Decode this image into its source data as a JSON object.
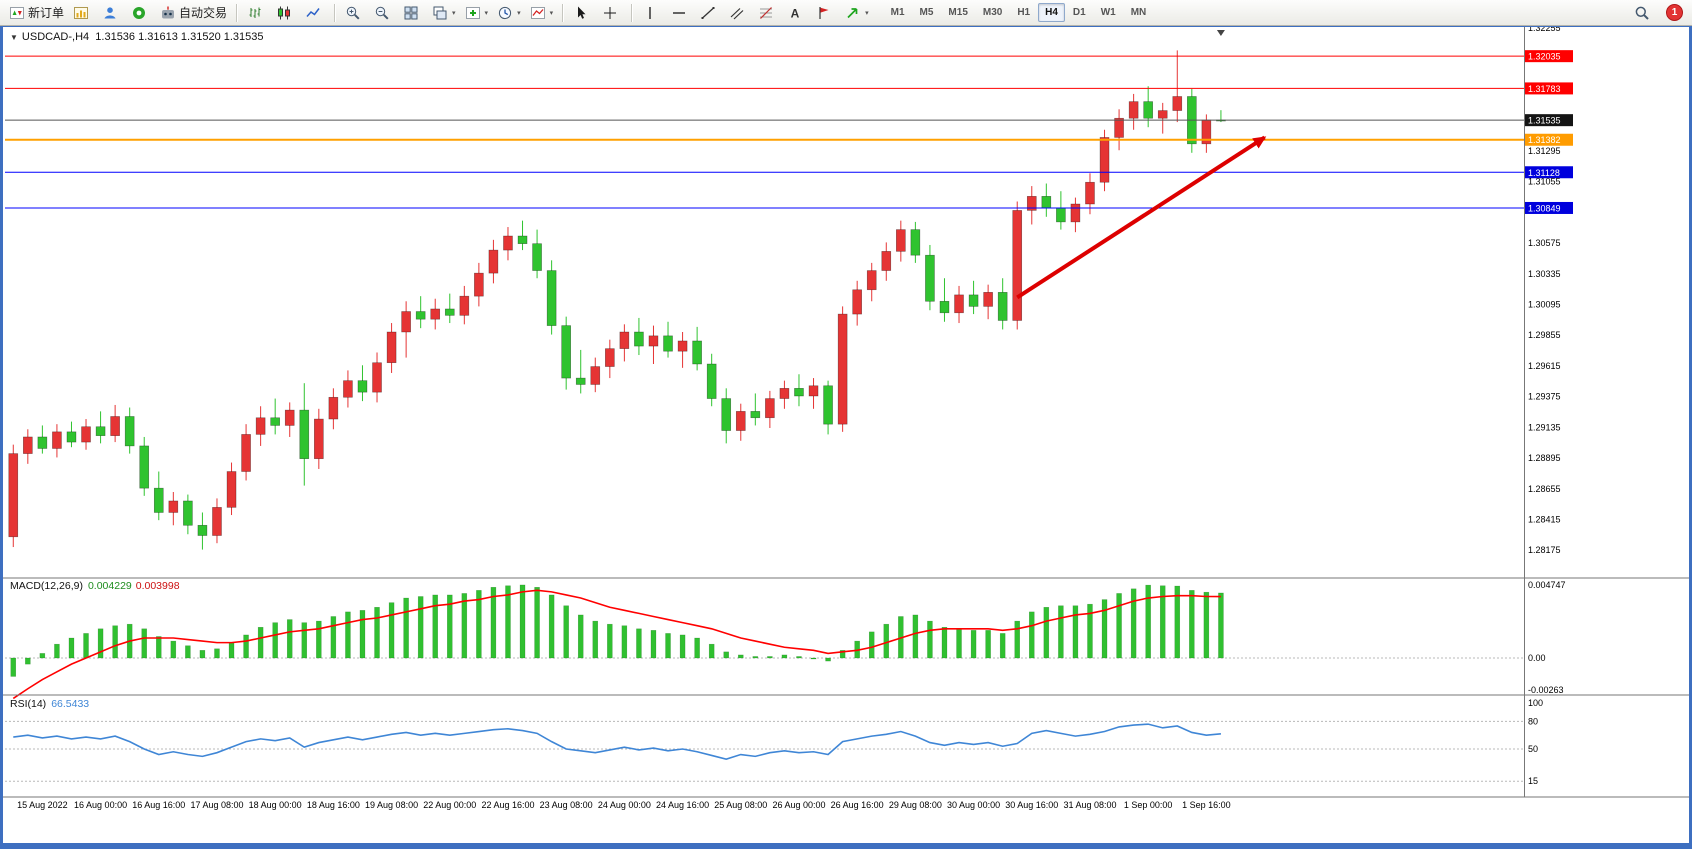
{
  "window": {
    "notification_count": "1"
  },
  "toolbar": {
    "new_order_label": "新订单",
    "auto_trading_label": "自动交易",
    "timeframes": [
      "M1",
      "M5",
      "M15",
      "M30",
      "H1",
      "H4",
      "D1",
      "W1",
      "MN"
    ],
    "active_timeframe": "H4"
  },
  "chart": {
    "collapse_arrow": "▼",
    "title_symbol": "USDCAD-,H4",
    "title_ohlc": "1.31536 1.31613 1.31520 1.31535"
  },
  "chart_data": {
    "type": "candlestick",
    "symbol": "USDCAD",
    "period": "H4",
    "current_candle": {
      "open": 1.31536,
      "high": 1.31613,
      "low": 1.3152,
      "close": 1.31535
    },
    "colors": {
      "up": "#e53434",
      "down": "#2fc32f",
      "background": "#ffffff",
      "axis_text": "#000000"
    },
    "price_axis": {
      "max": 1.32255,
      "min": 1.28175,
      "step": 0.0024,
      "labels": [
        "1.32255",
        "1.31295",
        "1.31055",
        "1.30575",
        "1.30335",
        "1.30095",
        "1.29855",
        "1.29615",
        "1.29375",
        "1.29135",
        "1.28895",
        "1.28655",
        "1.28415",
        "1.28175"
      ]
    },
    "horizontal_lines": [
      {
        "price": 1.32035,
        "label": "1.32035",
        "color": "#ff0000",
        "badge_bg": "#ff0000",
        "width": 1
      },
      {
        "price": 1.31783,
        "label": "1.31783",
        "color": "#ff0000",
        "badge_bg": "#ff0000",
        "width": 1
      },
      {
        "price": 1.31535,
        "label": "1.31535",
        "color": "#555555",
        "badge_bg": "#141414",
        "width": 1
      },
      {
        "price": 1.31382,
        "label": "1.31382",
        "color": "#ffa000",
        "badge_bg": "#ff9c00",
        "width": 2
      },
      {
        "price": 1.31128,
        "label": "1.31128",
        "color": "#0000ff",
        "badge_bg": "#0000dd",
        "width": 1
      },
      {
        "price": 1.30849,
        "label": "1.30849",
        "color": "#0000ff",
        "badge_bg": "#0000dd",
        "width": 1
      }
    ],
    "trend_arrow": {
      "from_index": 69,
      "from_price": 1.3015,
      "to_index": 86,
      "to_price": 1.314,
      "color": "#dd0000"
    },
    "time_labels": [
      "15 Aug 2022",
      "16 Aug 00:00",
      "16 Aug 16:00",
      "17 Aug 08:00",
      "18 Aug 00:00",
      "18 Aug 16:00",
      "19 Aug 08:00",
      "22 Aug 00:00",
      "22 Aug 16:00",
      "23 Aug 08:00",
      "24 Aug 00:00",
      "24 Aug 16:00",
      "25 Aug 08:00",
      "26 Aug 00:00",
      "26 Aug 16:00",
      "29 Aug 08:00",
      "30 Aug 00:00",
      "30 Aug 16:00",
      "31 Aug 08:00",
      "1 Sep 00:00",
      "1 Sep 16:00"
    ],
    "time_label_start_index": 2,
    "time_label_step": 4,
    "candles": [
      [
        1.2828,
        1.29,
        1.282,
        1.2893
      ],
      [
        1.2893,
        1.2912,
        1.2885,
        1.2906
      ],
      [
        1.2906,
        1.2915,
        1.2893,
        1.2897
      ],
      [
        1.2897,
        1.2916,
        1.289,
        1.291
      ],
      [
        1.291,
        1.2918,
        1.2898,
        1.2902
      ],
      [
        1.2902,
        1.292,
        1.2896,
        1.2914
      ],
      [
        1.2914,
        1.2926,
        1.2901,
        1.2907
      ],
      [
        1.2907,
        1.2931,
        1.2902,
        1.2922
      ],
      [
        1.2922,
        1.2929,
        1.2893,
        1.2899
      ],
      [
        1.2899,
        1.2906,
        1.286,
        1.2866
      ],
      [
        1.2866,
        1.2879,
        1.2841,
        1.2847
      ],
      [
        1.2847,
        1.2863,
        1.2837,
        1.2856
      ],
      [
        1.2856,
        1.2861,
        1.283,
        1.2837
      ],
      [
        1.2837,
        1.2847,
        1.2818,
        1.2829
      ],
      [
        1.2829,
        1.2858,
        1.2823,
        1.2851
      ],
      [
        1.2851,
        1.2886,
        1.2845,
        1.2879
      ],
      [
        1.2879,
        1.2916,
        1.2872,
        1.2908
      ],
      [
        1.2908,
        1.293,
        1.2899,
        1.2921
      ],
      [
        1.2921,
        1.2936,
        1.2908,
        1.2915
      ],
      [
        1.2915,
        1.2933,
        1.2906,
        1.2927
      ],
      [
        1.2927,
        1.2948,
        1.2868,
        1.2889
      ],
      [
        1.2889,
        1.2928,
        1.2881,
        1.292
      ],
      [
        1.292,
        1.2944,
        1.2912,
        1.2937
      ],
      [
        1.2937,
        1.2958,
        1.2929,
        1.295
      ],
      [
        1.295,
        1.2962,
        1.2934,
        1.2941
      ],
      [
        1.2941,
        1.2972,
        1.2933,
        1.2964
      ],
      [
        1.2964,
        1.2995,
        1.2956,
        1.2988
      ],
      [
        1.2988,
        1.3012,
        1.2968,
        1.3004
      ],
      [
        1.3004,
        1.3016,
        1.2991,
        1.2998
      ],
      [
        1.2998,
        1.3014,
        1.299,
        1.3006
      ],
      [
        1.3006,
        1.3018,
        1.2995,
        1.3001
      ],
      [
        1.3001,
        1.3024,
        1.2994,
        1.3016
      ],
      [
        1.3016,
        1.3042,
        1.3008,
        1.3034
      ],
      [
        1.3034,
        1.306,
        1.3026,
        1.3052
      ],
      [
        1.3052,
        1.307,
        1.3044,
        1.3063
      ],
      [
        1.3063,
        1.3075,
        1.3052,
        1.3057
      ],
      [
        1.3057,
        1.3068,
        1.303,
        1.3036
      ],
      [
        1.3036,
        1.3044,
        1.2986,
        1.2993
      ],
      [
        1.2993,
        1.3,
        1.2943,
        1.2952
      ],
      [
        1.2952,
        1.2974,
        1.294,
        1.2947
      ],
      [
        1.2947,
        1.2968,
        1.2941,
        1.2961
      ],
      [
        1.2961,
        1.2982,
        1.2952,
        1.2975
      ],
      [
        1.2975,
        1.2994,
        1.2965,
        1.2988
      ],
      [
        1.2988,
        1.2999,
        1.297,
        1.2977
      ],
      [
        1.2977,
        1.2993,
        1.2963,
        1.2985
      ],
      [
        1.2985,
        1.2996,
        1.2968,
        1.2973
      ],
      [
        1.2973,
        1.2988,
        1.296,
        1.2981
      ],
      [
        1.2981,
        1.2992,
        1.2958,
        1.2963
      ],
      [
        1.2963,
        1.2971,
        1.293,
        1.2936
      ],
      [
        1.2936,
        1.2944,
        1.2901,
        1.2911
      ],
      [
        1.2911,
        1.2932,
        1.2903,
        1.2926
      ],
      [
        1.2926,
        1.294,
        1.2915,
        1.2921
      ],
      [
        1.2921,
        1.2942,
        1.2913,
        1.2936
      ],
      [
        1.2936,
        1.295,
        1.2928,
        1.2944
      ],
      [
        1.2944,
        1.2955,
        1.293,
        1.2938
      ],
      [
        1.2938,
        1.2952,
        1.2928,
        1.2946
      ],
      [
        1.2946,
        1.295,
        1.2908,
        1.2916
      ],
      [
        1.2916,
        1.3008,
        1.291,
        1.3002
      ],
      [
        1.3002,
        1.3028,
        1.2993,
        1.3021
      ],
      [
        1.3021,
        1.3042,
        1.3012,
        1.3036
      ],
      [
        1.3036,
        1.3058,
        1.3028,
        1.3051
      ],
      [
        1.3051,
        1.3075,
        1.3043,
        1.3068
      ],
      [
        1.3068,
        1.3074,
        1.3042,
        1.3048
      ],
      [
        1.3048,
        1.3056,
        1.3005,
        1.3012
      ],
      [
        1.3012,
        1.303,
        1.2996,
        1.3003
      ],
      [
        1.3003,
        1.3024,
        1.2995,
        1.3017
      ],
      [
        1.3017,
        1.3028,
        1.3002,
        1.3008
      ],
      [
        1.3008,
        1.3025,
        1.2998,
        1.3019
      ],
      [
        1.3019,
        1.303,
        1.299,
        1.2997
      ],
      [
        1.2997,
        1.309,
        1.299,
        1.3083
      ],
      [
        1.3083,
        1.3102,
        1.3072,
        1.3094
      ],
      [
        1.3094,
        1.3104,
        1.3078,
        1.3085
      ],
      [
        1.3085,
        1.3098,
        1.3068,
        1.3074
      ],
      [
        1.3074,
        1.3093,
        1.3066,
        1.3088
      ],
      [
        1.3088,
        1.3112,
        1.308,
        1.3105
      ],
      [
        1.3105,
        1.3146,
        1.3098,
        1.314
      ],
      [
        1.314,
        1.3162,
        1.313,
        1.3155
      ],
      [
        1.3155,
        1.3174,
        1.3146,
        1.3168
      ],
      [
        1.3168,
        1.318,
        1.3148,
        1.3155
      ],
      [
        1.3155,
        1.3167,
        1.3143,
        1.3161
      ],
      [
        1.3161,
        1.3208,
        1.3152,
        1.3172
      ],
      [
        1.3172,
        1.3178,
        1.3128,
        1.3135
      ],
      [
        1.3135,
        1.3158,
        1.3128,
        1.31536
      ],
      [
        1.31536,
        1.31613,
        1.3152,
        1.31535
      ]
    ],
    "macd": {
      "label": "MACD(12,26,9)",
      "main_value": "0.004229",
      "signal_value": "0.003998",
      "axis_labels": [
        "0.004747",
        "0.00",
        "-0.00263"
      ],
      "histogram_color": "#30c030",
      "signal_color": "#ff0000",
      "histogram": [
        -0.0012,
        -0.0004,
        0.0003,
        0.0009,
        0.0013,
        0.0016,
        0.0019,
        0.0021,
        0.0022,
        0.0019,
        0.0014,
        0.0011,
        0.0008,
        0.0005,
        0.0006,
        0.001,
        0.0015,
        0.002,
        0.0023,
        0.0025,
        0.0023,
        0.0024,
        0.0027,
        0.003,
        0.0031,
        0.0033,
        0.0036,
        0.0039,
        0.004,
        0.0041,
        0.0041,
        0.0042,
        0.0044,
        0.0046,
        0.0047,
        0.00475,
        0.0046,
        0.0041,
        0.0034,
        0.0028,
        0.0024,
        0.0022,
        0.0021,
        0.0019,
        0.0018,
        0.0016,
        0.0015,
        0.0013,
        0.0009,
        0.0004,
        0.0002,
        0.0001,
        0.0001,
        0.0002,
        0.0001,
        0.0,
        -0.0002,
        0.0005,
        0.0011,
        0.0017,
        0.0022,
        0.0027,
        0.0028,
        0.0024,
        0.002,
        0.0019,
        0.0018,
        0.0018,
        0.0016,
        0.0024,
        0.003,
        0.0033,
        0.0034,
        0.0034,
        0.0035,
        0.0038,
        0.0042,
        0.0045,
        0.00474,
        0.0047,
        0.00468,
        0.0044,
        0.00428,
        0.004229
      ],
      "signal": [
        -0.00263,
        -0.002,
        -0.0014,
        -0.0009,
        -0.0004,
        0.0,
        0.0004,
        0.0008,
        0.0011,
        0.0013,
        0.0013,
        0.0013,
        0.0012,
        0.0011,
        0.001,
        0.001,
        0.0011,
        0.0013,
        0.0015,
        0.0017,
        0.0018,
        0.0019,
        0.0021,
        0.0023,
        0.0025,
        0.0026,
        0.0028,
        0.003,
        0.0032,
        0.0034,
        0.0035,
        0.0037,
        0.0038,
        0.004,
        0.0041,
        0.0043,
        0.0044,
        0.0043,
        0.0041,
        0.0039,
        0.0036,
        0.0033,
        0.0031,
        0.0029,
        0.0027,
        0.0025,
        0.0023,
        0.0021,
        0.0019,
        0.0016,
        0.0013,
        0.0011,
        0.0009,
        0.0007,
        0.0006,
        0.0005,
        0.0003,
        0.0004,
        0.0005,
        0.0007,
        0.001,
        0.0013,
        0.0016,
        0.0018,
        0.0019,
        0.0019,
        0.0019,
        0.0019,
        0.0018,
        0.0019,
        0.0021,
        0.0024,
        0.0026,
        0.0028,
        0.0029,
        0.0031,
        0.0034,
        0.0037,
        0.0039,
        0.004,
        0.00405,
        0.00405,
        0.004,
        0.003998
      ]
    },
    "rsi": {
      "label": "RSI(14)",
      "value": "66.5433",
      "axis_labels": [
        "100",
        "80",
        "50",
        "15"
      ],
      "levels": [
        80,
        50,
        15
      ],
      "line_color": "#3f86d6",
      "values": [
        63,
        65,
        62,
        64,
        61,
        63,
        61,
        64,
        58,
        50,
        44,
        47,
        44,
        42,
        46,
        52,
        58,
        61,
        59,
        62,
        52,
        57,
        60,
        63,
        60,
        63,
        66,
        68,
        65,
        67,
        65,
        67,
        69,
        71,
        72,
        70,
        67,
        58,
        50,
        48,
        46,
        49,
        52,
        49,
        51,
        48,
        50,
        47,
        43,
        39,
        44,
        42,
        46,
        48,
        46,
        47,
        44,
        58,
        61,
        64,
        66,
        69,
        64,
        57,
        54,
        57,
        55,
        57,
        53,
        56,
        67,
        70,
        67,
        64,
        66,
        69,
        74,
        76,
        77,
        73,
        75,
        68,
        65,
        66.5433
      ]
    }
  }
}
